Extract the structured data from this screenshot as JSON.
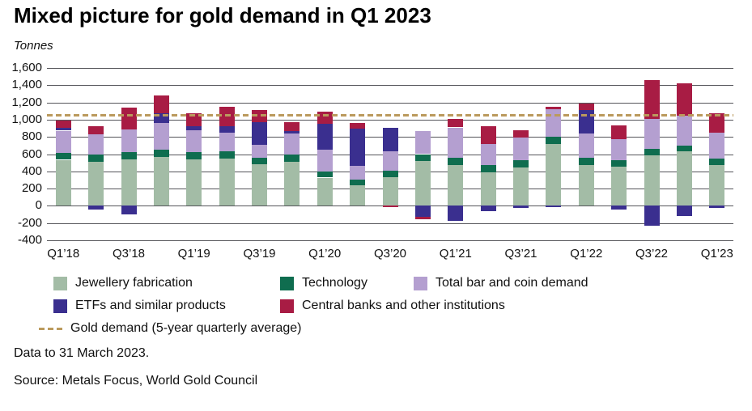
{
  "title": "Mixed picture for gold demand in Q1 2023",
  "units_label": "Tonnes",
  "footer": {
    "data_note": "Data to 31 March 2023.",
    "source": "Source: Metals Focus, World Gold Council"
  },
  "chart_data": {
    "type": "bar",
    "stacked": true,
    "title": "Mixed picture for gold demand in Q1 2023",
    "ylabel": "Tonnes",
    "ylim": [
      -400,
      1600
    ],
    "y_tick_step": 200,
    "y_ticks": [
      "1,600",
      "1,400",
      "1,200",
      "1,000",
      "800",
      "600",
      "400",
      "200",
      "0",
      "-200",
      "-400"
    ],
    "grid": "horizontal",
    "legend_position": "bottom",
    "categories": [
      "Q1’18",
      "Q2’18",
      "Q3’18",
      "Q4’18",
      "Q1’19",
      "Q2’19",
      "Q3’19",
      "Q4’19",
      "Q1’20",
      "Q2’20",
      "Q3’20",
      "Q4’20",
      "Q1’21",
      "Q2’21",
      "Q3’21",
      "Q4’21",
      "Q1’22",
      "Q2’22",
      "Q3’22",
      "Q4’22",
      "Q1’23"
    ],
    "x_tick_labels": [
      "Q1’18",
      "Q3’18",
      "Q1’19",
      "Q3’19",
      "Q1’20",
      "Q3’20",
      "Q1’21",
      "Q3’21",
      "Q1’22",
      "Q3’22",
      "Q1’23"
    ],
    "series": [
      {
        "name": "Jewellery fabrication",
        "color": "#a3bca6",
        "values": [
          534,
          511,
          537,
          570,
          539,
          549,
          479,
          514,
          328,
          241,
          333,
          516,
          477,
          391,
          443,
          714,
          475,
          453,
          584,
          629,
          478
        ]
      },
      {
        "name": "Technology",
        "color": "#0f6d4f",
        "values": [
          83,
          84,
          85,
          85,
          82,
          82,
          83,
          80,
          73,
          67,
          77,
          84,
          81,
          80,
          84,
          87,
          82,
          78,
          77,
          73,
          70
        ]
      },
      {
        "name": "Total bar and coin demand",
        "color": "#b49fd0",
        "values": [
          255,
          240,
          264,
          305,
          258,
          219,
          150,
          245,
          249,
          157,
          222,
          269,
          352,
          245,
          263,
          318,
          282,
          246,
          351,
          341,
          302
        ]
      },
      {
        "name": "ETFs and similar products",
        "color": "#3a2f8f",
        "values": [
          29,
          -46,
          -103,
          112,
          43,
          76,
          256,
          27,
          299,
          433,
          273,
          -130,
          -178,
          -61,
          -27,
          -18,
          269,
          -48,
          -227,
          -120,
          -29
        ]
      },
      {
        "name": "Central banks and other institutions",
        "color": "#a81c44",
        "values": [
          86,
          89,
          253,
          212,
          157,
          224,
          142,
          110,
          140,
          64,
          -11,
          -23,
          96,
          210,
          91,
          28,
          83,
          159,
          445,
          382,
          228
        ]
      }
    ],
    "average_line": {
      "label": "Gold demand (5-year quarterly average)",
      "value": 1050,
      "color": "#bb9a5d",
      "style": "dashed"
    }
  }
}
